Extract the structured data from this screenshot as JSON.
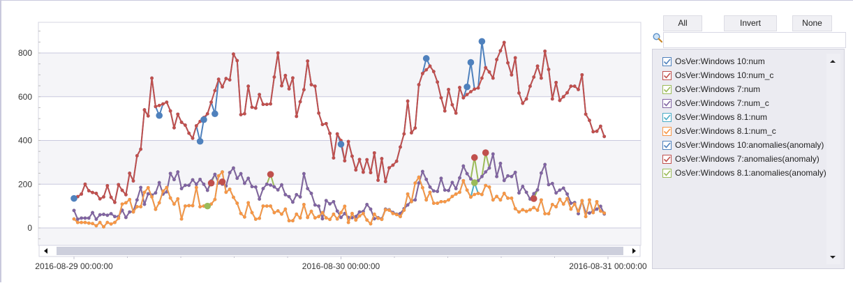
{
  "controls": {
    "all_label": "All",
    "invert_label": "Invert",
    "none_label": "None",
    "search_value": "",
    "search_icon": "magnifier-icon"
  },
  "legend": [
    {
      "label": "OsVer:Windows 10:num",
      "color": "#4f81bd",
      "checked": true
    },
    {
      "label": "OsVer:Windows 10:num_c",
      "color": "#c0504d",
      "checked": true
    },
    {
      "label": "OsVer:Windows 7:num",
      "color": "#9bbb59",
      "checked": true
    },
    {
      "label": "OsVer:Windows 7:num_c",
      "color": "#8064a2",
      "checked": true
    },
    {
      "label": "OsVer:Windows 8.1:num",
      "color": "#4bacc6",
      "checked": true
    },
    {
      "label": "OsVer:Windows 8.1:num_c",
      "color": "#f79646",
      "checked": true
    },
    {
      "label": "OsVer:Windows 10:anomalies(anomaly)",
      "color": "#4f81bd",
      "checked": true
    },
    {
      "label": "OsVer:Windows 7:anomalies(anomaly)",
      "color": "#c0504d",
      "checked": true
    },
    {
      "label": "OsVer:Windows 8.1:anomalies(anomaly)",
      "color": "#9bbb59",
      "checked": true
    }
  ],
  "chart_data": {
    "type": "line",
    "title": "",
    "xlabel": "",
    "ylabel": "",
    "ylim": [
      -80,
      940
    ],
    "yticks": [
      0,
      200,
      400,
      600,
      800
    ],
    "xticks": [
      "2016-08-29 00:00:00",
      "2016-08-30 00:00:00",
      "2016-08-31 00:00:00"
    ],
    "x_range": [
      "2016-08-29 00:00",
      "2016-08-30 23:40"
    ],
    "sampling": "20 minutes",
    "grid": true,
    "legend_position": "right",
    "series": [
      {
        "name": "OsVer:Windows 10:num",
        "color": "#4f81bd",
        "base": "OsVer:Windows 10:num_c",
        "overrides": {
          "0": 135,
          "23": 514,
          "34": 396,
          "35": 495,
          "38": 522,
          "72": 383,
          "95": 775,
          "106": 645,
          "107": 757,
          "110": 853
        }
      },
      {
        "name": "OsVer:Windows 10:num_c",
        "color": "#c0504d",
        "values": [
          140,
          143,
          155,
          200,
          170,
          162,
          158,
          133,
          142,
          193,
          140,
          117,
          198,
          172,
          152,
          250,
          215,
          330,
          360,
          540,
          512,
          685,
          555,
          560,
          567,
          575,
          535,
          458,
          520,
          483,
          470,
          433,
          410,
          467,
          487,
          505,
          522,
          575,
          628,
          680,
          645,
          683,
          677,
          795,
          765,
          518,
          522,
          648,
          552,
          548,
          610,
          565,
          565,
          567,
          690,
          800,
          650,
          697,
          636,
          686,
          510,
          577,
          632,
          763,
          655,
          648,
          525,
          473,
          477,
          432,
          320,
          430,
          400,
          307,
          395,
          328,
          265,
          313,
          255,
          312,
          253,
          343,
          218,
          317,
          212,
          275,
          287,
          305,
          370,
          430,
          580,
          435,
          457,
          655,
          706,
          723,
          740,
          715,
          667,
          595,
          535,
          633,
          563,
          525,
          642,
          595,
          610,
          623,
          635,
          640,
          685,
          733,
          713,
          685,
          770,
          810,
          848,
          755,
          700,
          778,
          617,
          570,
          590,
          648,
          690,
          740,
          685,
          808,
          725,
          590,
          665,
          583,
          600,
          618,
          648,
          648,
          633,
          700,
          520,
          492,
          440,
          442,
          465,
          418
        ]
      },
      {
        "name": "OsVer:Windows 7:num",
        "color": "#9bbb59",
        "base": "OsVer:Windows 7:num_c",
        "overrides": {
          "37": 205,
          "40": 211,
          "53": 245,
          "108": 322,
          "111": 344,
          "124": 134
        }
      },
      {
        "name": "OsVer:Windows 7:num_c",
        "color": "#8064a2",
        "values": [
          80,
          40,
          45,
          45,
          45,
          70,
          40,
          60,
          62,
          58,
          65,
          52,
          52,
          81,
          48,
          73,
          75,
          128,
          185,
          108,
          156,
          150,
          160,
          207,
          155,
          165,
          249,
          221,
          256,
          180,
          195,
          195,
          220,
          200,
          222,
          200,
          172,
          215,
          245,
          205,
          200,
          192,
          253,
          274,
          227,
          248,
          204,
          227,
          189,
          187,
          132,
          180,
          200,
          196,
          188,
          174,
          197,
          152,
          143,
          118,
          152,
          142,
          248,
          180,
          158,
          105,
          100,
          42,
          125,
          110,
          120,
          77,
          48,
          66,
          48,
          47,
          52,
          73,
          75,
          107,
          86,
          42,
          47,
          42,
          86,
          83,
          71,
          63,
          66,
          88,
          105,
          125,
          128,
          205,
          258,
          222,
          187,
          169,
          167,
          227,
          173,
          171,
          208,
          180,
          229,
          283,
          248,
          224,
          211,
          216,
          235,
          256,
          274,
          338,
          235,
          295,
          217,
          238,
          235,
          254,
          160,
          190,
          163,
          132,
          157,
          174,
          251,
          290,
          198,
          203,
          160,
          173,
          182,
          155,
          113,
          116,
          65,
          123,
          70,
          68,
          77,
          86,
          99,
          64
        ]
      },
      {
        "name": "OsVer:Windows 8.1:num",
        "color": "#4bacc6",
        "base": "OsVer:Windows 8.1:num_c",
        "overrides": {
          "36": 100,
          "108": 207
        }
      },
      {
        "name": "OsVer:Windows 8.1:num_c",
        "color": "#f79646",
        "values": [
          41,
          25,
          25,
          25,
          22,
          20,
          10,
          25,
          5,
          25,
          18,
          25,
          44,
          109,
          115,
          130,
          73,
          97,
          97,
          163,
          184,
          142,
          85,
          115,
          168,
          185,
          137,
          109,
          133,
          41,
          100,
          102,
          102,
          185,
          97,
          100,
          100,
          109,
          130,
          238,
          256,
          163,
          177,
          140,
          113,
          66,
          50,
          115,
          70,
          40,
          44,
          100,
          100,
          100,
          70,
          78,
          63,
          86,
          33,
          33,
          63,
          46,
          107,
          48,
          76,
          46,
          52,
          70,
          46,
          39,
          63,
          41,
          70,
          99,
          25,
          66,
          36,
          55,
          66,
          36,
          19,
          63,
          44,
          39,
          83,
          81,
          66,
          61,
          52,
          81,
          155,
          120,
          205,
          232,
          184,
          128,
          163,
          113,
          113,
          120,
          120,
          128,
          144,
          155,
          163,
          216,
          173,
          141,
          153,
          158,
          153,
          194,
          187,
          128,
          144,
          128,
          158,
          136,
          136,
          88,
          73,
          83,
          76,
          83,
          93,
          81,
          128,
          65,
          65,
          107,
          97,
          131,
          109,
          134,
          86,
          109,
          77,
          125,
          52,
          128,
          70,
          120,
          77,
          68
        ]
      }
    ],
    "anomalies": [
      {
        "name": "OsVer:Windows 10:anomalies(anomaly)",
        "color": "#4f81bd",
        "indices": [
          0,
          23,
          34,
          35,
          38,
          72,
          95,
          106,
          107,
          110
        ],
        "source": "OsVer:Windows 10:num"
      },
      {
        "name": "OsVer:Windows 7:anomalies(anomaly)",
        "color": "#c0504d",
        "indices": [
          37,
          40,
          53,
          108,
          111,
          124
        ],
        "source": "OsVer:Windows 7:num"
      },
      {
        "name": "OsVer:Windows 8.1:anomalies(anomaly)",
        "color": "#9bbb59",
        "indices": [
          36,
          108
        ],
        "source": "OsVer:Windows 8.1:num"
      }
    ]
  }
}
